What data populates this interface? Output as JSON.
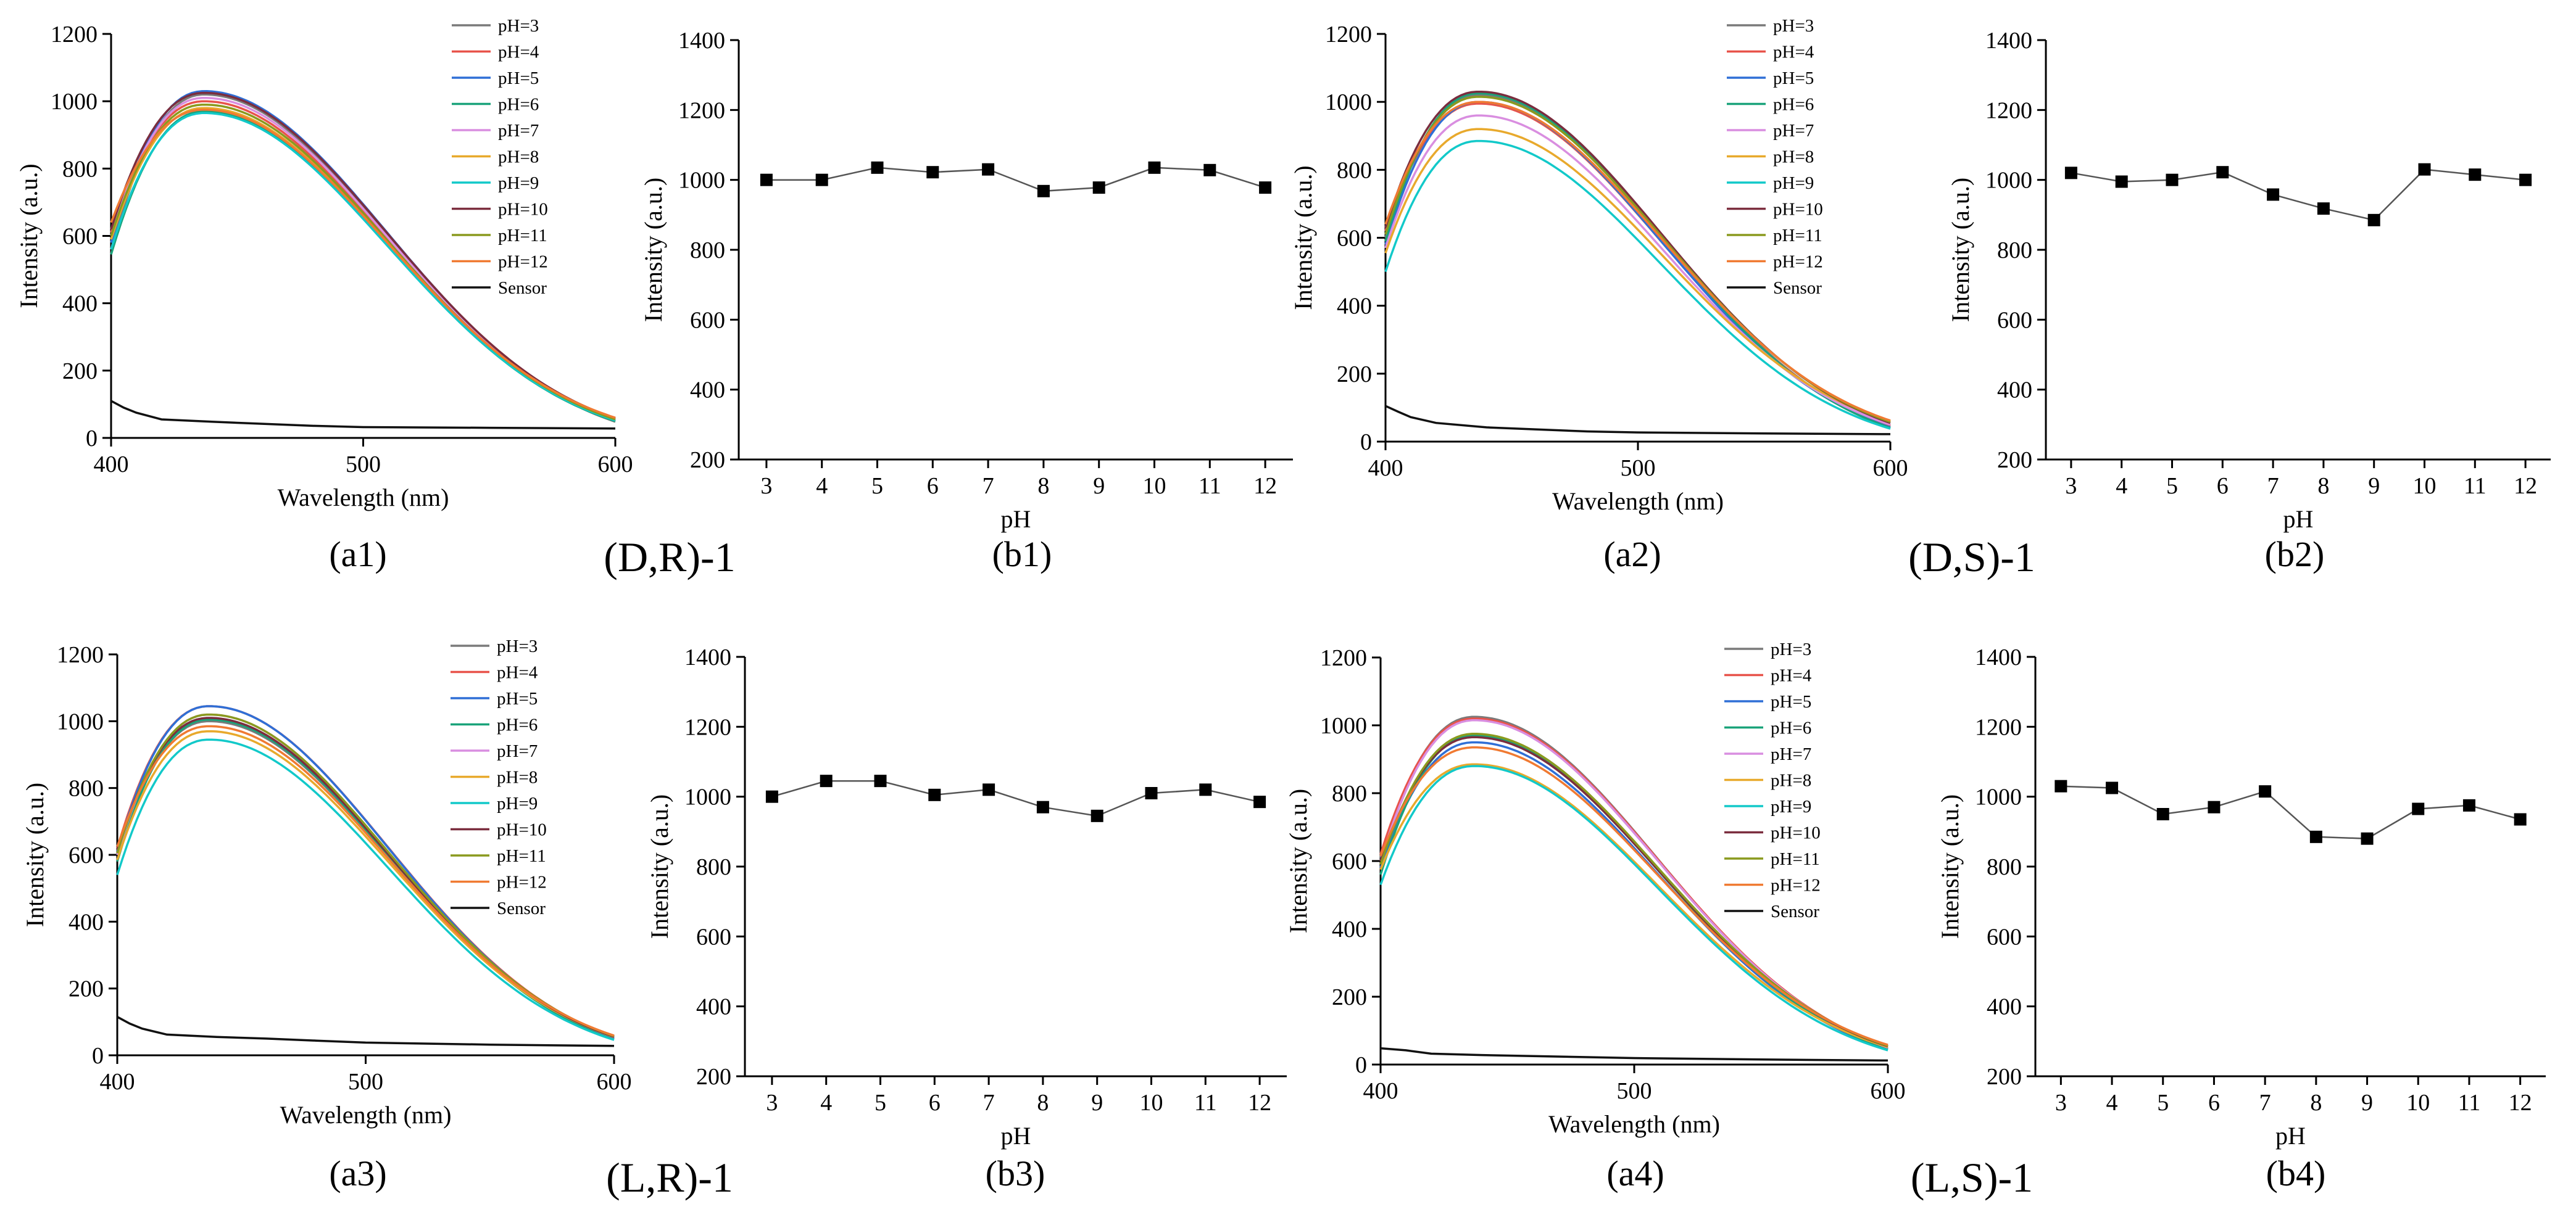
{
  "figure": {
    "panel_labels": [
      "(a1)",
      "(b1)",
      "(a2)",
      "(b2)",
      "(a3)",
      "(b3)",
      "(a4)",
      "(b4)"
    ],
    "group_labels": [
      "(D,R)-1",
      "(D,S)-1",
      "(L,R)-1",
      "(L,S)-1"
    ]
  },
  "chart_data": [
    {
      "id": "a1",
      "type": "line",
      "title": "",
      "xlabel": "Wavelength (nm)",
      "ylabel": "Intensity (a.u.)",
      "xlim": [
        400,
        600
      ],
      "ylim": [
        0,
        1200
      ],
      "xticks": [
        400,
        500,
        600
      ],
      "yticks": [
        0,
        200,
        400,
        600,
        800,
        1000,
        1200
      ],
      "legend": "top-right",
      "grid": false,
      "series": [
        {
          "name": "pH=3",
          "color": "#7a7a7a",
          "start": 560,
          "peak": 1020,
          "end": 48
        },
        {
          "name": "pH=4",
          "color": "#e8534a",
          "start": 610,
          "peak": 1000,
          "end": 52
        },
        {
          "name": "pH=5",
          "color": "#2f6fd6",
          "start": 580,
          "peak": 1030,
          "end": 55
        },
        {
          "name": "pH=6",
          "color": "#1aa37a",
          "start": 545,
          "peak": 970,
          "end": 50
        },
        {
          "name": "pH=7",
          "color": "#d98ee0",
          "start": 600,
          "peak": 1010,
          "end": 54
        },
        {
          "name": "pH=8",
          "color": "#e8a92c",
          "start": 590,
          "peak": 980,
          "end": 56
        },
        {
          "name": "pH=9",
          "color": "#12c9c9",
          "start": 560,
          "peak": 965,
          "end": 52
        },
        {
          "name": "pH=10",
          "color": "#7b2d3e",
          "start": 620,
          "peak": 1025,
          "end": 58
        },
        {
          "name": "pH=11",
          "color": "#8a9a1e",
          "start": 600,
          "peak": 990,
          "end": 55
        },
        {
          "name": "pH=12",
          "color": "#f07a32",
          "start": 640,
          "peak": 975,
          "end": 60
        },
        {
          "name": "Sensor",
          "color": "#111111",
          "sensor": [
            [
              400,
              110
            ],
            [
              405,
              90
            ],
            [
              410,
              75
            ],
            [
              420,
              55
            ],
            [
              440,
              48
            ],
            [
              460,
              42
            ],
            [
              480,
              36
            ],
            [
              500,
              32
            ],
            [
              550,
              30
            ],
            [
              600,
              28
            ]
          ]
        }
      ]
    },
    {
      "id": "b1",
      "type": "scatter",
      "title": "",
      "xlabel": "pH",
      "ylabel": "Intensity (a.u.)",
      "xlim": [
        2.5,
        12.5
      ],
      "ylim": [
        200,
        1400
      ],
      "xticks": [
        3,
        4,
        5,
        6,
        7,
        8,
        9,
        10,
        11,
        12
      ],
      "yticks": [
        200,
        400,
        600,
        800,
        1000,
        1200,
        1400
      ],
      "x": [
        3,
        4,
        5,
        6,
        7,
        8,
        9,
        10,
        11,
        12
      ],
      "values": [
        1000,
        1000,
        1035,
        1022,
        1030,
        968,
        978,
        1035,
        1028,
        978
      ]
    },
    {
      "id": "a2",
      "type": "line",
      "title": "",
      "xlabel": "Wavelength (nm)",
      "ylabel": "Intensity (a.u.)",
      "xlim": [
        400,
        600
      ],
      "ylim": [
        0,
        1200
      ],
      "xticks": [
        400,
        500,
        600
      ],
      "yticks": [
        0,
        200,
        400,
        600,
        800,
        1000,
        1200
      ],
      "legend": "top-right",
      "grid": false,
      "series": [
        {
          "name": "pH=3",
          "color": "#7a7a7a",
          "start": 600,
          "peak": 1020,
          "end": 45
        },
        {
          "name": "pH=4",
          "color": "#e8534a",
          "start": 620,
          "peak": 995,
          "end": 48
        },
        {
          "name": "pH=5",
          "color": "#2f6fd6",
          "start": 580,
          "peak": 1000,
          "end": 42
        },
        {
          "name": "pH=6",
          "color": "#1aa37a",
          "start": 590,
          "peak": 1025,
          "end": 40
        },
        {
          "name": "pH=7",
          "color": "#d98ee0",
          "start": 570,
          "peak": 960,
          "end": 50
        },
        {
          "name": "pH=8",
          "color": "#e8a92c",
          "start": 555,
          "peak": 920,
          "end": 60
        },
        {
          "name": "pH=9",
          "color": "#12c9c9",
          "start": 500,
          "peak": 885,
          "end": 38
        },
        {
          "name": "pH=10",
          "color": "#7b2d3e",
          "start": 630,
          "peak": 1030,
          "end": 55
        },
        {
          "name": "pH=11",
          "color": "#8a9a1e",
          "start": 610,
          "peak": 1015,
          "end": 58
        },
        {
          "name": "pH=12",
          "color": "#f07a32",
          "start": 640,
          "peak": 1000,
          "end": 62
        },
        {
          "name": "Sensor",
          "color": "#111111",
          "sensor": [
            [
              400,
              105
            ],
            [
              405,
              88
            ],
            [
              410,
              72
            ],
            [
              420,
              55
            ],
            [
              440,
              42
            ],
            [
              460,
              36
            ],
            [
              480,
              30
            ],
            [
              500,
              27
            ],
            [
              550,
              24
            ],
            [
              600,
              22
            ]
          ]
        }
      ]
    },
    {
      "id": "b2",
      "type": "scatter",
      "title": "",
      "xlabel": "pH",
      "ylabel": "Intensity (a.u.)",
      "xlim": [
        2.5,
        12.5
      ],
      "ylim": [
        200,
        1400
      ],
      "xticks": [
        3,
        4,
        5,
        6,
        7,
        8,
        9,
        10,
        11,
        12
      ],
      "yticks": [
        200,
        400,
        600,
        800,
        1000,
        1200,
        1400
      ],
      "x": [
        3,
        4,
        5,
        6,
        7,
        8,
        9,
        10,
        11,
        12
      ],
      "values": [
        1020,
        995,
        1000,
        1022,
        958,
        918,
        885,
        1030,
        1015,
        1000
      ]
    },
    {
      "id": "a3",
      "type": "line",
      "title": "",
      "xlabel": "Wavelength (nm)",
      "ylabel": "Intensity (a.u.)",
      "xlim": [
        400,
        600
      ],
      "ylim": [
        0,
        1200
      ],
      "xticks": [
        400,
        500,
        600
      ],
      "yticks": [
        0,
        200,
        400,
        600,
        800,
        1000,
        1200
      ],
      "legend": "top-right",
      "grid": false,
      "series": [
        {
          "name": "pH=3",
          "color": "#7a7a7a",
          "start": 600,
          "peak": 1000,
          "end": 50
        },
        {
          "name": "pH=4",
          "color": "#e8534a",
          "start": 620,
          "peak": 1045,
          "end": 55
        },
        {
          "name": "pH=5",
          "color": "#2f6fd6",
          "start": 610,
          "peak": 1045,
          "end": 52
        },
        {
          "name": "pH=6",
          "color": "#1aa37a",
          "start": 580,
          "peak": 1005,
          "end": 48
        },
        {
          "name": "pH=7",
          "color": "#d98ee0",
          "start": 600,
          "peak": 1020,
          "end": 54
        },
        {
          "name": "pH=8",
          "color": "#e8a92c",
          "start": 585,
          "peak": 970,
          "end": 56
        },
        {
          "name": "pH=9",
          "color": "#12c9c9",
          "start": 540,
          "peak": 945,
          "end": 46
        },
        {
          "name": "pH=10",
          "color": "#7b2d3e",
          "start": 615,
          "peak": 1010,
          "end": 55
        },
        {
          "name": "pH=11",
          "color": "#8a9a1e",
          "start": 605,
          "peak": 1020,
          "end": 57
        },
        {
          "name": "pH=12",
          "color": "#f07a32",
          "start": 625,
          "peak": 985,
          "end": 59
        },
        {
          "name": "Sensor",
          "color": "#111111",
          "sensor": [
            [
              400,
              115
            ],
            [
              405,
              95
            ],
            [
              410,
              80
            ],
            [
              420,
              62
            ],
            [
              440,
              55
            ],
            [
              460,
              50
            ],
            [
              480,
              44
            ],
            [
              500,
              38
            ],
            [
              550,
              32
            ],
            [
              600,
              28
            ]
          ]
        }
      ]
    },
    {
      "id": "b3",
      "type": "scatter",
      "title": "",
      "xlabel": "pH",
      "ylabel": "Intensity (a.u.)",
      "xlim": [
        2.5,
        12.5
      ],
      "ylim": [
        200,
        1400
      ],
      "xticks": [
        3,
        4,
        5,
        6,
        7,
        8,
        9,
        10,
        11,
        12
      ],
      "yticks": [
        200,
        400,
        600,
        800,
        1000,
        1200,
        1400
      ],
      "x": [
        3,
        4,
        5,
        6,
        7,
        8,
        9,
        10,
        11,
        12
      ],
      "values": [
        1000,
        1045,
        1045,
        1005,
        1020,
        970,
        945,
        1010,
        1020,
        985
      ]
    },
    {
      "id": "a4",
      "type": "line",
      "title": "",
      "xlabel": "Wavelength (nm)",
      "ylabel": "Intensity (a.u.)",
      "xlim": [
        400,
        600
      ],
      "ylim": [
        0,
        1200
      ],
      "xticks": [
        400,
        500,
        600
      ],
      "yticks": [
        0,
        200,
        400,
        600,
        800,
        1000,
        1200
      ],
      "legend": "top-right",
      "grid": false,
      "series": [
        {
          "name": "pH=3",
          "color": "#7a7a7a",
          "start": 610,
          "peak": 1025,
          "end": 48
        },
        {
          "name": "pH=4",
          "color": "#e8534a",
          "start": 620,
          "peak": 1020,
          "end": 52
        },
        {
          "name": "pH=5",
          "color": "#2f6fd6",
          "start": 580,
          "peak": 950,
          "end": 45
        },
        {
          "name": "pH=6",
          "color": "#1aa37a",
          "start": 560,
          "peak": 970,
          "end": 46
        },
        {
          "name": "pH=7",
          "color": "#d98ee0",
          "start": 600,
          "peak": 1015,
          "end": 50
        },
        {
          "name": "pH=8",
          "color": "#e8a92c",
          "start": 575,
          "peak": 885,
          "end": 52
        },
        {
          "name": "pH=9",
          "color": "#12c9c9",
          "start": 530,
          "peak": 880,
          "end": 42
        },
        {
          "name": "pH=10",
          "color": "#7b2d3e",
          "start": 600,
          "peak": 965,
          "end": 54
        },
        {
          "name": "pH=11",
          "color": "#8a9a1e",
          "start": 590,
          "peak": 975,
          "end": 55
        },
        {
          "name": "pH=12",
          "color": "#f07a32",
          "start": 615,
          "peak": 935,
          "end": 58
        },
        {
          "name": "Sensor",
          "color": "#111111",
          "sensor": [
            [
              400,
              48
            ],
            [
              410,
              42
            ],
            [
              420,
              32
            ],
            [
              440,
              28
            ],
            [
              460,
              25
            ],
            [
              480,
              22
            ],
            [
              500,
              19
            ],
            [
              550,
              15
            ],
            [
              600,
              12
            ]
          ]
        }
      ]
    },
    {
      "id": "b4",
      "type": "scatter",
      "title": "",
      "xlabel": "pH",
      "ylabel": "Intensity (a.u.)",
      "xlim": [
        2.5,
        12.5
      ],
      "ylim": [
        200,
        1400
      ],
      "xticks": [
        3,
        4,
        5,
        6,
        7,
        8,
        9,
        10,
        11,
        12
      ],
      "yticks": [
        200,
        400,
        600,
        800,
        1000,
        1200,
        1400
      ],
      "x": [
        3,
        4,
        5,
        6,
        7,
        8,
        9,
        10,
        11,
        12
      ],
      "values": [
        1030,
        1025,
        950,
        970,
        1015,
        885,
        880,
        965,
        975,
        935
      ]
    }
  ]
}
